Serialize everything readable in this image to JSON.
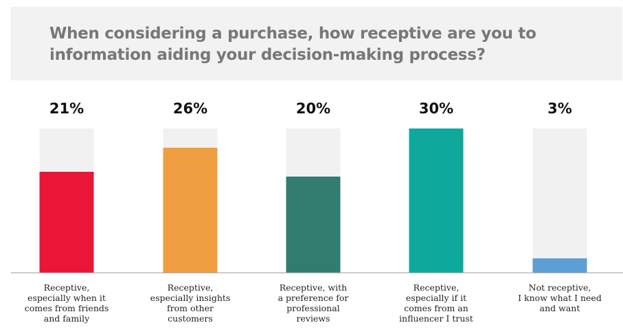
{
  "title": "When considering a purchase, how receptive are you to information aiding your decision-making process?",
  "chart_data": {
    "type": "bar",
    "title": "When considering a purchase, how receptive are you to information aiding your decision-making process?",
    "categories": [
      [
        "Receptive,",
        "especially when it",
        "comes from friends",
        "and family"
      ],
      [
        "Receptive,",
        "especially insights",
        "from other",
        "customers"
      ],
      [
        "Receptive, with",
        "a preference for",
        "professional",
        "reviews"
      ],
      [
        "Receptive,",
        "especially if it",
        "comes from an",
        "influencer I trust"
      ],
      [
        "Not receptive,",
        "I know what I need",
        "and want"
      ]
    ],
    "values": [
      21,
      26,
      20,
      30,
      3
    ],
    "value_labels": [
      "21%",
      "26%",
      "20%",
      "30%",
      "3%"
    ],
    "unit": "%",
    "ylim": [
      0,
      30
    ],
    "colors": [
      "#ea1637",
      "#ef9e41",
      "#327c6f",
      "#0ea89c",
      "#5b9fd4"
    ],
    "track_color": "#f1f1f2",
    "grid": false,
    "legend": "none"
  }
}
